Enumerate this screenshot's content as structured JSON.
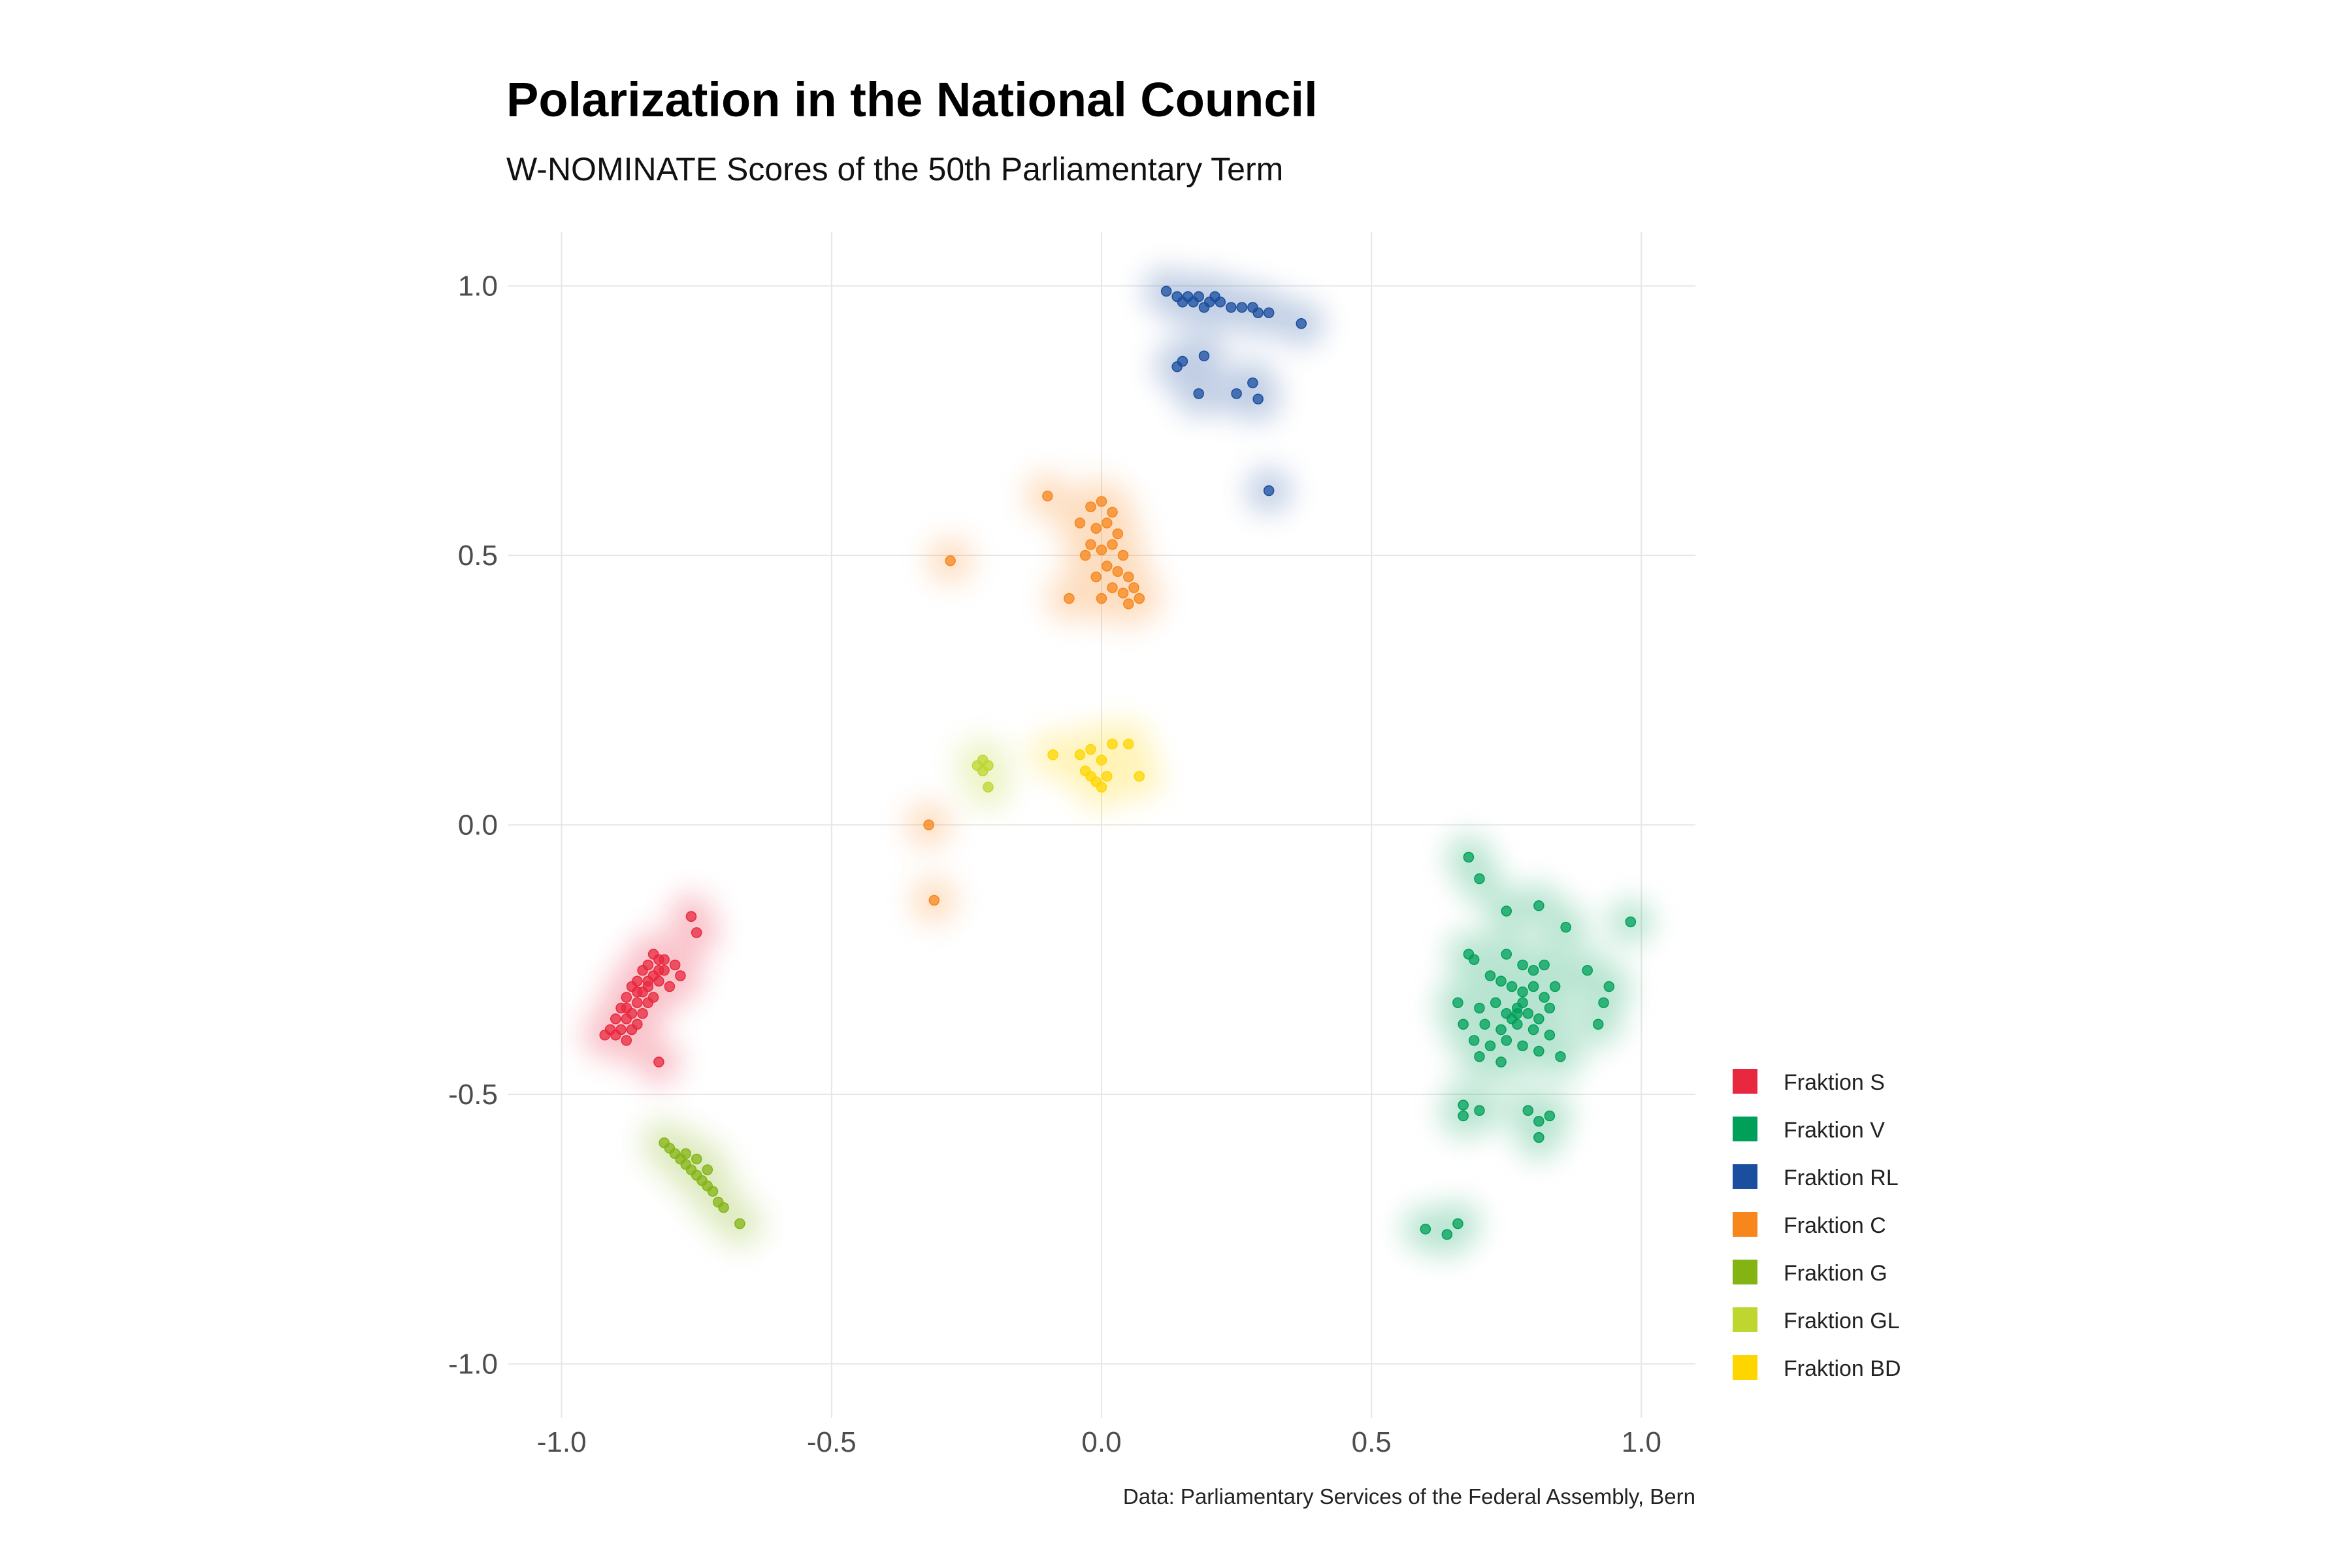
{
  "chart_data": {
    "type": "scatter",
    "title": "Polarization in the National Council",
    "subtitle": "W-NOMINATE Scores of the 50th Parliamentary Term",
    "caption": "Data: Parliamentary Services of the Federal Assembly, Bern",
    "xlabel": "",
    "ylabel": "",
    "xlim": [
      -1.1,
      1.1
    ],
    "ylim": [
      -1.1,
      1.1
    ],
    "x_ticks": [
      -1.0,
      -0.5,
      0.0,
      0.5,
      1.0
    ],
    "x_tick_labels": [
      "-1.0",
      "-0.5",
      "0.0",
      "0.5",
      "1.0"
    ],
    "y_ticks": [
      -1.0,
      -0.5,
      0.0,
      0.5,
      1.0
    ],
    "y_tick_labels": [
      "-1.0",
      "-0.5",
      "0.0",
      "0.5",
      "1.0"
    ],
    "grid": true,
    "legend_position": "right",
    "series": [
      {
        "name": "Fraktion S",
        "color": "#E8283F",
        "points": [
          [
            -0.83,
            -0.24
          ],
          [
            -0.82,
            -0.25
          ],
          [
            -0.84,
            -0.26
          ],
          [
            -0.81,
            -0.27
          ],
          [
            -0.85,
            -0.27
          ],
          [
            -0.83,
            -0.28
          ],
          [
            -0.82,
            -0.29
          ],
          [
            -0.86,
            -0.29
          ],
          [
            -0.84,
            -0.3
          ],
          [
            -0.8,
            -0.3
          ],
          [
            -0.87,
            -0.3
          ],
          [
            -0.85,
            -0.31
          ],
          [
            -0.83,
            -0.32
          ],
          [
            -0.88,
            -0.32
          ],
          [
            -0.86,
            -0.33
          ],
          [
            -0.84,
            -0.33
          ],
          [
            -0.89,
            -0.34
          ],
          [
            -0.87,
            -0.35
          ],
          [
            -0.85,
            -0.35
          ],
          [
            -0.88,
            -0.36
          ],
          [
            -0.9,
            -0.36
          ],
          [
            -0.86,
            -0.37
          ],
          [
            -0.89,
            -0.38
          ],
          [
            -0.91,
            -0.38
          ],
          [
            -0.87,
            -0.38
          ],
          [
            -0.88,
            -0.4
          ],
          [
            -0.92,
            -0.39
          ],
          [
            -0.9,
            -0.39
          ],
          [
            -0.82,
            -0.27
          ],
          [
            -0.81,
            -0.25
          ],
          [
            -0.78,
            -0.28
          ],
          [
            -0.79,
            -0.26
          ],
          [
            -0.76,
            -0.17
          ],
          [
            -0.75,
            -0.2
          ],
          [
            -0.82,
            -0.44
          ],
          [
            -0.86,
            -0.31
          ],
          [
            -0.84,
            -0.29
          ],
          [
            -0.88,
            -0.34
          ]
        ]
      },
      {
        "name": "Fraktion V",
        "color": "#00A05A",
        "points": [
          [
            0.68,
            -0.06
          ],
          [
            0.7,
            -0.1
          ],
          [
            0.75,
            -0.16
          ],
          [
            0.81,
            -0.15
          ],
          [
            0.86,
            -0.19
          ],
          [
            0.98,
            -0.18
          ],
          [
            0.68,
            -0.24
          ],
          [
            0.69,
            -0.25
          ],
          [
            0.75,
            -0.24
          ],
          [
            0.78,
            -0.26
          ],
          [
            0.8,
            -0.27
          ],
          [
            0.82,
            -0.26
          ],
          [
            0.72,
            -0.28
          ],
          [
            0.74,
            -0.29
          ],
          [
            0.76,
            -0.3
          ],
          [
            0.78,
            -0.31
          ],
          [
            0.8,
            -0.3
          ],
          [
            0.82,
            -0.32
          ],
          [
            0.84,
            -0.3
          ],
          [
            0.66,
            -0.33
          ],
          [
            0.7,
            -0.34
          ],
          [
            0.73,
            -0.33
          ],
          [
            0.75,
            -0.35
          ],
          [
            0.77,
            -0.34
          ],
          [
            0.79,
            -0.35
          ],
          [
            0.81,
            -0.36
          ],
          [
            0.83,
            -0.34
          ],
          [
            0.67,
            -0.37
          ],
          [
            0.71,
            -0.37
          ],
          [
            0.74,
            -0.38
          ],
          [
            0.77,
            -0.37
          ],
          [
            0.8,
            -0.38
          ],
          [
            0.83,
            -0.39
          ],
          [
            0.69,
            -0.4
          ],
          [
            0.72,
            -0.41
          ],
          [
            0.75,
            -0.4
          ],
          [
            0.78,
            -0.41
          ],
          [
            0.81,
            -0.42
          ],
          [
            0.85,
            -0.43
          ],
          [
            0.7,
            -0.43
          ],
          [
            0.74,
            -0.44
          ],
          [
            0.9,
            -0.27
          ],
          [
            0.94,
            -0.3
          ],
          [
            0.93,
            -0.33
          ],
          [
            0.92,
            -0.37
          ],
          [
            0.67,
            -0.52
          ],
          [
            0.67,
            -0.54
          ],
          [
            0.7,
            -0.53
          ],
          [
            0.79,
            -0.53
          ],
          [
            0.81,
            -0.55
          ],
          [
            0.83,
            -0.54
          ],
          [
            0.81,
            -0.58
          ],
          [
            0.6,
            -0.75
          ],
          [
            0.64,
            -0.76
          ],
          [
            0.66,
            -0.74
          ],
          [
            0.77,
            -0.35
          ],
          [
            0.78,
            -0.33
          ],
          [
            0.76,
            -0.36
          ]
        ]
      },
      {
        "name": "Fraktion RL",
        "color": "#1A4E9E",
        "points": [
          [
            0.12,
            0.99
          ],
          [
            0.14,
            0.98
          ],
          [
            0.16,
            0.98
          ],
          [
            0.18,
            0.98
          ],
          [
            0.2,
            0.97
          ],
          [
            0.17,
            0.97
          ],
          [
            0.19,
            0.96
          ],
          [
            0.22,
            0.97
          ],
          [
            0.24,
            0.96
          ],
          [
            0.26,
            0.96
          ],
          [
            0.28,
            0.96
          ],
          [
            0.29,
            0.95
          ],
          [
            0.31,
            0.95
          ],
          [
            0.15,
            0.97
          ],
          [
            0.21,
            0.98
          ],
          [
            0.37,
            0.93
          ],
          [
            0.14,
            0.85
          ],
          [
            0.15,
            0.86
          ],
          [
            0.19,
            0.87
          ],
          [
            0.28,
            0.82
          ],
          [
            0.18,
            0.8
          ],
          [
            0.25,
            0.8
          ],
          [
            0.29,
            0.79
          ],
          [
            0.31,
            0.62
          ]
        ]
      },
      {
        "name": "Fraktion C",
        "color": "#F7861C",
        "points": [
          [
            -0.1,
            0.61
          ],
          [
            -0.04,
            0.56
          ],
          [
            -0.02,
            0.59
          ],
          [
            0.0,
            0.6
          ],
          [
            0.02,
            0.58
          ],
          [
            -0.01,
            0.55
          ],
          [
            0.01,
            0.56
          ],
          [
            0.03,
            0.54
          ],
          [
            -0.02,
            0.52
          ],
          [
            0.0,
            0.51
          ],
          [
            0.02,
            0.52
          ],
          [
            0.04,
            0.5
          ],
          [
            -0.03,
            0.5
          ],
          [
            0.01,
            0.48
          ],
          [
            0.03,
            0.47
          ],
          [
            0.05,
            0.46
          ],
          [
            -0.01,
            0.46
          ],
          [
            0.06,
            0.44
          ],
          [
            0.02,
            0.44
          ],
          [
            0.04,
            0.43
          ],
          [
            0.07,
            0.42
          ],
          [
            0.0,
            0.42
          ],
          [
            -0.06,
            0.42
          ],
          [
            0.05,
            0.41
          ],
          [
            -0.28,
            0.49
          ],
          [
            -0.32,
            0.0
          ],
          [
            -0.31,
            -0.14
          ]
        ]
      },
      {
        "name": "Fraktion G",
        "color": "#84B414",
        "points": [
          [
            -0.81,
            -0.59
          ],
          [
            -0.8,
            -0.6
          ],
          [
            -0.79,
            -0.61
          ],
          [
            -0.78,
            -0.62
          ],
          [
            -0.77,
            -0.63
          ],
          [
            -0.76,
            -0.64
          ],
          [
            -0.75,
            -0.65
          ],
          [
            -0.74,
            -0.66
          ],
          [
            -0.73,
            -0.67
          ],
          [
            -0.72,
            -0.68
          ],
          [
            -0.71,
            -0.7
          ],
          [
            -0.7,
            -0.71
          ],
          [
            -0.77,
            -0.61
          ],
          [
            -0.75,
            -0.62
          ],
          [
            -0.73,
            -0.64
          ],
          [
            -0.67,
            -0.74
          ]
        ]
      },
      {
        "name": "Fraktion GL",
        "color": "#BFD630",
        "points": [
          [
            -0.22,
            0.12
          ],
          [
            -0.23,
            0.11
          ],
          [
            -0.21,
            0.11
          ],
          [
            -0.22,
            0.1
          ],
          [
            -0.21,
            0.07
          ]
        ]
      },
      {
        "name": "Fraktion BD",
        "color": "#FFD500",
        "points": [
          [
            -0.09,
            0.13
          ],
          [
            -0.04,
            0.13
          ],
          [
            -0.02,
            0.14
          ],
          [
            0.0,
            0.12
          ],
          [
            0.02,
            0.15
          ],
          [
            0.05,
            0.15
          ],
          [
            -0.03,
            0.1
          ],
          [
            -0.02,
            0.09
          ],
          [
            -0.01,
            0.08
          ],
          [
            0.0,
            0.07
          ],
          [
            0.01,
            0.09
          ],
          [
            0.07,
            0.09
          ]
        ]
      }
    ]
  }
}
